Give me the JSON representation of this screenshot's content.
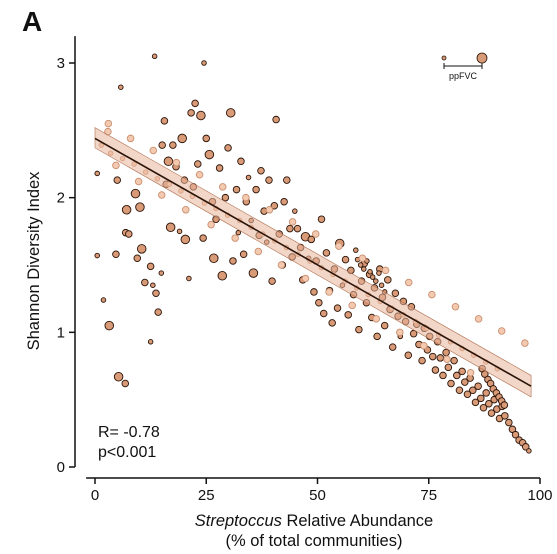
{
  "panel_label": "A",
  "chart_data": {
    "type": "scatter",
    "xlabel_italic": "Streptoccus",
    "xlabel_rest": " Relative Abundance",
    "xlabel_line2": "(% of total communities)",
    "ylabel": "Shannon Diversity Index",
    "xlim": [
      -2,
      100
    ],
    "ylim": [
      0,
      3.2
    ],
    "x_ticks": [
      0,
      25,
      50,
      75,
      100
    ],
    "y_ticks": [
      0,
      1,
      2,
      3
    ],
    "stats": {
      "r": "R= -0.78",
      "p": "p<0.001"
    },
    "legend": {
      "label": "ppFVC",
      "placement": "top-right",
      "meaning": "point size"
    },
    "regression": {
      "x": [
        0,
        98
      ],
      "y": [
        2.44,
        0.6
      ],
      "ci_low": [
        2.37,
        0.52
      ],
      "ci_high": [
        2.52,
        0.68
      ]
    },
    "colors": {
      "fill_light": "#f3c9b0",
      "fill_dark": "#d99a78",
      "stroke_dark": "#2a1408",
      "line": "#2a1408",
      "ci_band": "#e8b59a"
    },
    "points": [
      [
        2.9,
        2.49,
        2,
        1
      ],
      [
        5.8,
        2.82,
        1,
        0
      ],
      [
        13.4,
        3.05,
        1,
        0
      ],
      [
        24.5,
        3.0,
        1,
        0
      ],
      [
        0.5,
        2.18,
        1,
        0
      ],
      [
        0.5,
        1.57,
        1,
        0
      ],
      [
        1.9,
        1.24,
        1,
        0
      ],
      [
        3.2,
        1.05,
        3,
        0
      ],
      [
        4.7,
        1.58,
        2,
        0
      ],
      [
        5.0,
        2.13,
        2,
        0
      ],
      [
        5.3,
        0.67,
        3,
        0
      ],
      [
        6.8,
        0.62,
        2,
        0
      ],
      [
        7.1,
        1.91,
        3,
        0
      ],
      [
        6.9,
        1.74,
        2,
        0
      ],
      [
        7.6,
        1.73,
        2,
        0
      ],
      [
        9.1,
        2.03,
        3,
        0
      ],
      [
        9.5,
        1.55,
        2,
        0
      ],
      [
        10.1,
        1.93,
        3,
        0
      ],
      [
        10.5,
        1.62,
        3,
        0
      ],
      [
        11.2,
        1.37,
        2,
        0
      ],
      [
        12.5,
        0.93,
        1,
        0
      ],
      [
        12.5,
        1.49,
        2,
        0
      ],
      [
        13.0,
        1.35,
        1,
        0
      ],
      [
        13.7,
        1.29,
        2,
        0
      ],
      [
        14.2,
        1.15,
        2,
        0
      ],
      [
        14.9,
        1.44,
        1,
        0
      ],
      [
        15.1,
        2.39,
        2,
        0
      ],
      [
        15.6,
        2.57,
        2,
        0
      ],
      [
        16.0,
        2.1,
        2,
        0
      ],
      [
        16.5,
        2.27,
        3,
        0
      ],
      [
        17.0,
        1.78,
        3,
        0
      ],
      [
        17.5,
        2.39,
        2,
        0
      ],
      [
        18.2,
        2.23,
        2,
        0
      ],
      [
        19.0,
        1.75,
        1,
        0
      ],
      [
        19.6,
        2.44,
        3,
        0
      ],
      [
        20.1,
        2.13,
        2,
        0
      ],
      [
        20.3,
        1.69,
        3,
        0
      ],
      [
        21.1,
        1.4,
        1,
        0
      ],
      [
        21.6,
        2.63,
        2,
        0
      ],
      [
        22.1,
        2.08,
        2,
        0
      ],
      [
        22.5,
        2.7,
        2,
        0
      ],
      [
        23.1,
        2.25,
        2,
        0
      ],
      [
        23.8,
        2.61,
        3,
        0
      ],
      [
        24.3,
        1.7,
        2,
        0
      ],
      [
        25.0,
        2.44,
        2,
        0
      ],
      [
        25.7,
        2.32,
        3,
        0
      ],
      [
        26.4,
        1.97,
        2,
        0
      ],
      [
        26.7,
        1.55,
        3,
        0
      ],
      [
        27.2,
        1.84,
        2,
        0
      ],
      [
        28.0,
        2.22,
        2,
        0
      ],
      [
        28.6,
        1.42,
        3,
        0
      ],
      [
        29.3,
        2.0,
        2,
        0
      ],
      [
        29.9,
        2.37,
        2,
        0
      ],
      [
        30.5,
        2.63,
        3,
        0
      ],
      [
        31.0,
        1.53,
        2,
        0
      ],
      [
        31.8,
        2.06,
        2,
        0
      ],
      [
        32.2,
        1.74,
        1,
        0
      ],
      [
        32.8,
        2.27,
        2,
        0
      ],
      [
        33.4,
        1.58,
        2,
        0
      ],
      [
        34.0,
        1.97,
        2,
        0
      ],
      [
        34.5,
        2.15,
        1,
        0
      ],
      [
        35.1,
        1.83,
        1,
        0
      ],
      [
        35.6,
        1.44,
        3,
        0
      ],
      [
        36.2,
        2.06,
        2,
        0
      ],
      [
        36.9,
        1.72,
        2,
        0
      ],
      [
        37.3,
        2.2,
        2,
        0
      ],
      [
        38.0,
        1.9,
        2,
        0
      ],
      [
        38.6,
        1.67,
        1,
        0
      ],
      [
        39.1,
        2.13,
        2,
        0
      ],
      [
        39.8,
        1.38,
        2,
        0
      ],
      [
        40.3,
        1.94,
        2,
        0
      ],
      [
        40.7,
        2.58,
        2,
        0
      ],
      [
        41.4,
        1.73,
        2,
        0
      ],
      [
        42.1,
        1.5,
        2,
        0
      ],
      [
        42.5,
        1.97,
        2,
        0
      ],
      [
        43.1,
        2.13,
        2,
        0
      ],
      [
        43.8,
        1.77,
        2,
        0
      ],
      [
        44.3,
        1.56,
        2,
        0
      ],
      [
        44.9,
        1.9,
        1,
        0
      ],
      [
        45.5,
        1.77,
        2,
        0
      ],
      [
        46.2,
        1.63,
        2,
        0
      ],
      [
        46.7,
        1.39,
        2,
        0
      ],
      [
        47.3,
        1.71,
        3,
        0
      ],
      [
        48.0,
        1.55,
        1,
        0
      ],
      [
        48.6,
        1.69,
        2,
        0
      ],
      [
        49.2,
        1.3,
        2,
        0
      ],
      [
        49.7,
        1.53,
        2,
        0
      ],
      [
        50.3,
        1.22,
        2,
        0
      ],
      [
        50.9,
        1.84,
        2,
        0
      ],
      [
        51.4,
        1.14,
        2,
        0
      ],
      [
        52.0,
        1.59,
        2,
        0
      ],
      [
        52.7,
        1.31,
        2,
        0
      ],
      [
        53.3,
        1.07,
        2,
        0
      ],
      [
        53.8,
        1.47,
        2,
        0
      ],
      [
        54.5,
        1.18,
        2,
        0
      ],
      [
        55.0,
        1.66,
        3,
        0
      ],
      [
        55.6,
        1.35,
        1,
        0
      ],
      [
        56.3,
        1.54,
        2,
        0
      ],
      [
        56.9,
        1.13,
        2,
        0
      ],
      [
        57.5,
        1.46,
        2,
        0
      ],
      [
        58.1,
        1.28,
        2,
        0
      ],
      [
        58.6,
        1.61,
        1,
        0
      ],
      [
        59.3,
        1.02,
        2,
        0
      ],
      [
        59.9,
        1.38,
        2,
        0
      ],
      [
        60.5,
        1.51,
        2,
        0
      ],
      [
        61.0,
        1.22,
        2,
        0
      ],
      [
        61.7,
        1.43,
        2,
        0
      ],
      [
        62.2,
        1.11,
        2,
        0
      ],
      [
        62.8,
        1.33,
        2,
        0
      ],
      [
        63.4,
        0.97,
        2,
        0
      ],
      [
        64.0,
        1.47,
        2,
        0
      ],
      [
        64.6,
        1.26,
        2,
        0
      ],
      [
        65.1,
        1.05,
        2,
        0
      ],
      [
        65.8,
        1.39,
        2,
        0
      ],
      [
        66.3,
        1.17,
        2,
        0
      ],
      [
        66.9,
        0.89,
        2,
        0
      ],
      [
        67.5,
        1.29,
        2,
        0
      ],
      [
        68.1,
        1.12,
        2,
        0
      ],
      [
        68.6,
        0.97,
        1,
        0
      ],
      [
        69.3,
        1.23,
        2,
        0
      ],
      [
        69.8,
        1.08,
        2,
        0
      ],
      [
        70.4,
        0.83,
        2,
        0
      ],
      [
        71.1,
        1.19,
        2,
        0
      ],
      [
        71.6,
        0.99,
        2,
        0
      ],
      [
        72.3,
        1.06,
        2,
        0
      ],
      [
        72.8,
        0.91,
        2,
        0
      ],
      [
        73.5,
        0.79,
        2,
        0
      ],
      [
        74.0,
        1.03,
        2,
        0
      ],
      [
        74.7,
        0.87,
        2,
        0
      ],
      [
        75.2,
        0.97,
        2,
        0
      ],
      [
        75.9,
        0.82,
        2,
        0
      ],
      [
        76.5,
        0.72,
        2,
        0
      ],
      [
        77.0,
        0.93,
        2,
        0
      ],
      [
        77.6,
        0.81,
        2,
        0
      ],
      [
        78.2,
        0.68,
        2,
        0
      ],
      [
        78.9,
        0.85,
        2,
        0
      ],
      [
        79.4,
        0.74,
        2,
        0
      ],
      [
        80.0,
        0.62,
        2,
        0
      ],
      [
        80.7,
        0.79,
        2,
        0
      ],
      [
        81.3,
        0.68,
        2,
        0
      ],
      [
        81.9,
        0.57,
        2,
        0
      ],
      [
        82.5,
        0.71,
        2,
        0
      ],
      [
        83.1,
        0.63,
        2,
        0
      ],
      [
        83.7,
        0.54,
        2,
        0
      ],
      [
        84.3,
        0.66,
        2,
        0
      ],
      [
        84.9,
        0.57,
        2,
        0
      ],
      [
        85.5,
        0.48,
        2,
        0
      ],
      [
        86.1,
        0.6,
        2,
        0
      ],
      [
        86.7,
        0.51,
        2,
        0
      ],
      [
        87.3,
        0.44,
        2,
        0
      ],
      [
        87.9,
        0.55,
        2,
        0
      ],
      [
        88.5,
        0.47,
        2,
        0
      ],
      [
        89.1,
        0.4,
        2,
        0
      ],
      [
        89.7,
        0.5,
        2,
        0
      ],
      [
        90.3,
        0.43,
        2,
        0
      ],
      [
        90.9,
        0.36,
        2,
        0
      ],
      [
        91.5,
        0.45,
        2,
        0
      ],
      [
        92.1,
        0.38,
        2,
        0
      ],
      [
        93.0,
        0.33,
        2,
        0
      ],
      [
        93.8,
        0.28,
        2,
        0
      ],
      [
        94.5,
        0.24,
        2,
        0
      ],
      [
        95.3,
        0.2,
        2,
        0
      ],
      [
        96.1,
        0.18,
        2,
        0
      ],
      [
        96.8,
        0.15,
        2,
        0
      ],
      [
        97.5,
        0.12,
        1,
        0
      ],
      [
        59.0,
        1.54,
        1,
        0
      ],
      [
        59.7,
        1.5,
        1,
        0
      ],
      [
        60.4,
        1.47,
        1,
        0
      ],
      [
        61.1,
        1.53,
        1,
        0
      ],
      [
        61.8,
        1.45,
        1,
        0
      ],
      [
        62.4,
        1.41,
        1,
        0
      ],
      [
        63.1,
        1.38,
        1,
        0
      ],
      [
        63.8,
        1.44,
        1,
        0
      ],
      [
        64.4,
        1.35,
        1,
        0
      ],
      [
        65.1,
        1.3,
        1,
        0
      ],
      [
        87.0,
        0.73,
        2,
        0
      ],
      [
        87.6,
        0.69,
        2,
        0
      ],
      [
        88.3,
        0.65,
        2,
        0
      ],
      [
        88.9,
        0.62,
        2,
        0
      ],
      [
        89.5,
        0.58,
        2,
        0
      ],
      [
        90.2,
        0.55,
        2,
        0
      ],
      [
        90.8,
        0.52,
        2,
        0
      ],
      [
        91.4,
        0.49,
        2,
        0
      ],
      [
        92.0,
        0.46,
        2,
        0
      ],
      [
        1.4,
        2.39,
        1,
        1
      ],
      [
        3.5,
        2.33,
        1,
        1
      ],
      [
        6.2,
        2.29,
        1,
        1
      ],
      [
        8.8,
        2.25,
        1,
        1
      ],
      [
        11.4,
        2.19,
        1,
        1
      ],
      [
        14.0,
        2.14,
        1,
        1
      ],
      [
        16.7,
        2.1,
        1,
        1
      ],
      [
        19.3,
        2.05,
        1,
        1
      ],
      [
        21.9,
        2.01,
        1,
        1
      ],
      [
        24.6,
        1.96,
        1,
        1
      ],
      [
        27.2,
        1.92,
        1,
        1
      ],
      [
        29.8,
        1.87,
        1,
        1
      ],
      [
        32.5,
        1.83,
        1,
        1
      ],
      [
        35.1,
        1.78,
        1,
        1
      ],
      [
        37.7,
        1.73,
        1,
        1
      ],
      [
        40.4,
        1.68,
        1,
        1
      ],
      [
        43.0,
        1.63,
        1,
        1
      ],
      [
        45.6,
        1.58,
        1,
        1
      ],
      [
        48.3,
        1.53,
        1,
        1
      ],
      [
        50.9,
        1.48,
        1,
        1
      ],
      [
        53.5,
        1.43,
        1,
        1
      ],
      [
        56.2,
        1.38,
        1,
        1
      ],
      [
        58.8,
        1.33,
        1,
        1
      ],
      [
        61.4,
        1.28,
        1,
        1
      ],
      [
        64.1,
        1.23,
        1,
        1
      ],
      [
        66.7,
        1.18,
        1,
        1
      ],
      [
        69.3,
        1.13,
        1,
        1
      ],
      [
        72.0,
        1.08,
        1,
        1
      ],
      [
        74.6,
        1.03,
        1,
        1
      ],
      [
        77.2,
        0.98,
        1,
        1
      ],
      [
        79.9,
        0.93,
        1,
        1
      ],
      [
        82.5,
        0.88,
        1,
        1
      ],
      [
        85.1,
        0.83,
        1,
        1
      ],
      [
        87.8,
        0.78,
        1,
        1
      ],
      [
        90.4,
        0.73,
        1,
        1
      ],
      [
        4.7,
        2.24,
        2,
        1
      ],
      [
        9.8,
        2.12,
        2,
        1
      ],
      [
        15.0,
        2.02,
        2,
        1
      ],
      [
        20.4,
        1.91,
        2,
        1
      ],
      [
        26.1,
        1.8,
        2,
        1
      ],
      [
        31.5,
        1.7,
        2,
        1
      ],
      [
        36.7,
        1.6,
        2,
        1
      ],
      [
        41.9,
        1.5,
        2,
        1
      ],
      [
        47.3,
        1.4,
        2,
        1
      ],
      [
        52.6,
        1.3,
        2,
        1
      ],
      [
        57.8,
        1.2,
        2,
        1
      ],
      [
        63.2,
        1.1,
        2,
        1
      ],
      [
        68.5,
        1.0,
        2,
        1
      ],
      [
        73.9,
        0.9,
        2,
        1
      ],
      [
        79.1,
        0.8,
        2,
        1
      ],
      [
        84.4,
        0.7,
        2,
        1
      ],
      [
        3.0,
        2.55,
        2,
        1
      ],
      [
        8.0,
        2.44,
        2,
        1
      ],
      [
        13.1,
        2.35,
        2,
        1
      ],
      [
        18.3,
        2.26,
        2,
        1
      ],
      [
        23.5,
        2.17,
        2,
        1
      ],
      [
        28.7,
        2.08,
        2,
        1
      ],
      [
        33.9,
        2.0,
        2,
        1
      ],
      [
        39.2,
        1.91,
        2,
        1
      ],
      [
        44.4,
        1.82,
        2,
        1
      ],
      [
        49.6,
        1.73,
        2,
        1
      ],
      [
        54.8,
        1.64,
        2,
        1
      ],
      [
        60.1,
        1.55,
        2,
        1
      ],
      [
        65.3,
        1.46,
        2,
        1
      ],
      [
        70.5,
        1.37,
        2,
        1
      ],
      [
        75.7,
        1.28,
        2,
        1
      ],
      [
        81.0,
        1.19,
        2,
        1
      ],
      [
        86.2,
        1.1,
        2,
        1
      ],
      [
        91.4,
        1.01,
        2,
        1
      ],
      [
        96.6,
        0.92,
        2,
        1
      ]
    ]
  }
}
